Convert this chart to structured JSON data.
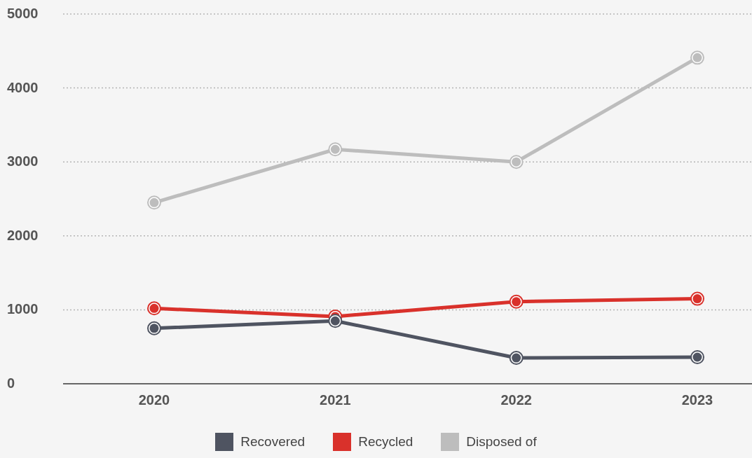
{
  "chart_data": {
    "type": "line",
    "categories": [
      "2020",
      "2021",
      "2022",
      "2023"
    ],
    "series": [
      {
        "name": "Recovered",
        "color": "#4f5461",
        "values": [
          750,
          850,
          350,
          360
        ]
      },
      {
        "name": "Recycled",
        "color": "#d9312b",
        "values": [
          1020,
          910,
          1110,
          1150
        ]
      },
      {
        "name": "Disposed of",
        "color": "#bdbdbd",
        "values": [
          2450,
          3170,
          3000,
          4410
        ]
      }
    ],
    "ylim": [
      0,
      5000
    ],
    "yticks": [
      0,
      1000,
      2000,
      3000,
      4000,
      5000
    ],
    "grid": "y",
    "legend": "bottom",
    "marker": "circle",
    "line_style": "solid"
  }
}
